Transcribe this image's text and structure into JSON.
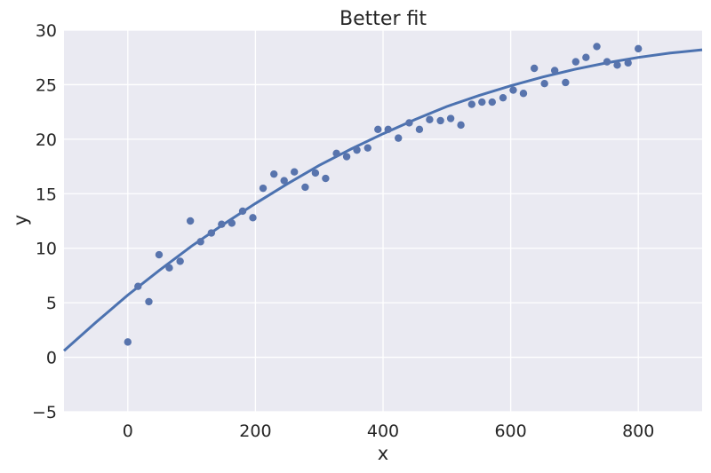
{
  "chart_data": {
    "type": "scatter",
    "title": "Better fit",
    "xlabel": "x",
    "ylabel": "y",
    "xlim": [
      -100,
      900
    ],
    "ylim": [
      -5,
      30
    ],
    "xticks": [
      0,
      200,
      400,
      600,
      800
    ],
    "yticks": [
      -5,
      0,
      5,
      10,
      15,
      20,
      25,
      30
    ],
    "grid": true,
    "background": "#eaeaf2",
    "grid_color": "#ffffff",
    "point_color": "#5874ad",
    "line_color": "#4c72b0",
    "series": [
      {
        "kind": "scatter",
        "x": [
          0,
          16,
          33,
          49,
          65,
          82,
          98,
          114,
          131,
          147,
          163,
          180,
          196,
          212,
          229,
          245,
          261,
          278,
          294,
          310,
          327,
          343,
          359,
          376,
          392,
          408,
          424,
          441,
          457,
          473,
          490,
          506,
          522,
          539,
          555,
          571,
          588,
          604,
          620,
          637,
          653,
          669,
          686,
          702,
          718,
          735,
          751,
          767,
          784,
          800
        ],
        "y": [
          1.4,
          6.5,
          5.1,
          9.4,
          8.2,
          8.8,
          12.5,
          10.6,
          11.4,
          12.2,
          12.3,
          13.4,
          12.8,
          15.5,
          16.8,
          16.2,
          17.0,
          15.6,
          16.9,
          16.4,
          18.7,
          18.4,
          19.0,
          19.2,
          20.9,
          20.9,
          20.1,
          21.5,
          20.9,
          21.8,
          21.7,
          21.9,
          21.3,
          23.2,
          23.4,
          23.4,
          23.8,
          24.5,
          24.2,
          26.5,
          25.1,
          26.3,
          25.2,
          27.1,
          27.5,
          28.5,
          27.1,
          26.8,
          27.0,
          28.3
        ]
      },
      {
        "kind": "fit-line",
        "x": [
          -100,
          -50,
          0,
          50,
          100,
          150,
          200,
          250,
          300,
          350,
          400,
          450,
          500,
          550,
          600,
          650,
          700,
          750,
          800,
          850,
          900
        ],
        "y": [
          0.6,
          3.2,
          5.7,
          8.0,
          10.2,
          12.2,
          14.1,
          15.9,
          17.6,
          19.1,
          20.5,
          21.8,
          23.0,
          24.0,
          24.9,
          25.7,
          26.4,
          27.0,
          27.5,
          27.9,
          28.2
        ]
      }
    ]
  }
}
